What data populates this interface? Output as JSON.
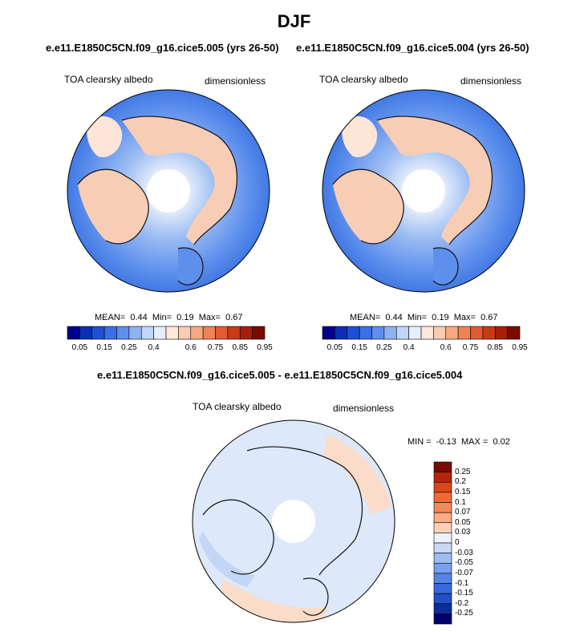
{
  "page_title": "DJF",
  "panels": [
    {
      "run": "e.e11.E1850C5CN.f09_g16.cice5.005 (yrs 26-50)",
      "variable": "TOA clearsky albedo",
      "units": "dimensionless",
      "stats": {
        "mean_label": "MEAN=",
        "mean": "0.44",
        "min_label": "Min=",
        "min": "0.19",
        "max_label": "Max=",
        "max": "0.67"
      }
    },
    {
      "run": "e.e11.E1850C5CN.f09_g16.cice5.004 (yrs 26-50)",
      "variable": "TOA clearsky albedo",
      "units": "dimensionless",
      "stats": {
        "mean_label": "MEAN=",
        "mean": "0.44",
        "min_label": "Min=",
        "min": "0.19",
        "max_label": "Max=",
        "max": "0.67"
      }
    }
  ],
  "diff_panel": {
    "run": "e.e11.E1850C5CN.f09_g16.cice5.005 - e.e11.E1850C5CN.f09_g16.cice5.004",
    "variable": "TOA clearsky albedo",
    "units": "dimensionless",
    "stats": {
      "min_label": "MIN =",
      "min": "-0.13",
      "max_label": "MAX =",
      "max": "0.02"
    }
  },
  "colorbar_abs": {
    "colors": [
      "#00008b",
      "#0a2eb8",
      "#1e4fd8",
      "#3a6fe8",
      "#5f8ef0",
      "#8fb2f4",
      "#c0d6f8",
      "#e7eefb",
      "#fde6da",
      "#fbcbb2",
      "#f7a882",
      "#f08258",
      "#e45a32",
      "#c93a18",
      "#a81e0a",
      "#7a0a04"
    ],
    "tick_labels": [
      "0.05",
      "0.15",
      "0.25",
      "0.4",
      "0.6",
      "0.75",
      "0.85",
      "0.95"
    ]
  },
  "colorbar_diff": {
    "colors": [
      "#7a0a04",
      "#b3260c",
      "#d8461c",
      "#f06a36",
      "#f48a5a",
      "#f8ab85",
      "#fcd0b8",
      "#eef2fb",
      "#c8d8f6",
      "#9fbcf2",
      "#7aa0ee",
      "#5683e6",
      "#3a69de",
      "#2250c8",
      "#0c2e9c",
      "#00006e"
    ],
    "tick_labels": [
      "0.25",
      "0.2",
      "0.15",
      "0.1",
      "0.07",
      "0.05",
      "0.03",
      "0",
      "-0.03",
      "-0.05",
      "-0.07",
      "-0.1",
      "-0.15",
      "-0.2",
      "-0.25"
    ]
  },
  "map_colors": {
    "ocean_low": "#3f77e3",
    "ocean_mid": "#8fb3f2",
    "ice_pale": "#e4ecfa",
    "land_peach": "#f8cdb6",
    "land_light": "#fde5d8",
    "diff_base": "#dde8fa",
    "diff_ocean": "#c4d6f6",
    "diff_pos": "#fbdcc8"
  }
}
